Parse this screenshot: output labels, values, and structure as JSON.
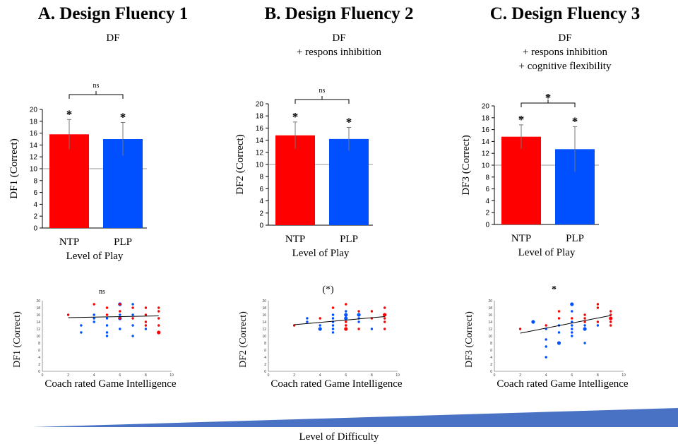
{
  "colors": {
    "ntp": "#ff0000",
    "plp": "#0050ff",
    "wedge": "#4a72c4",
    "ref_line": "#999999",
    "grid": "#555555"
  },
  "bottom": {
    "label": "Level of Difficulty"
  },
  "chart_data": [
    {
      "type": "bar",
      "panel": "A",
      "title": "A.  Design Fluency 1",
      "subtitle_lines": [
        "DF"
      ],
      "categories": [
        "NTP",
        "PLP"
      ],
      "values": [
        15.8,
        15.0
      ],
      "errors": [
        2.5,
        2.8
      ],
      "bar_labels": [
        "*",
        "*"
      ],
      "significance": "ns",
      "reference_line": 10,
      "xlabel": "Level of Play",
      "ylabel": "DF1 (Correct)",
      "ylim": [
        0,
        20
      ],
      "yticks": [
        0,
        2,
        4,
        6,
        8,
        10,
        12,
        14,
        16,
        18,
        20
      ]
    },
    {
      "type": "bar",
      "panel": "B",
      "title": "B. Design Fluency  2",
      "subtitle_lines": [
        "DF",
        "+ respons inhibition"
      ],
      "categories": [
        "NTP",
        "PLP"
      ],
      "values": [
        14.8,
        14.2
      ],
      "errors": [
        2.2,
        1.9
      ],
      "bar_labels": [
        "*",
        "*"
      ],
      "significance": "ns",
      "reference_line": 10,
      "xlabel": "Level of Play",
      "ylabel": "DF2 (Correct)",
      "ylim": [
        0,
        20
      ],
      "yticks": [
        0,
        2,
        4,
        6,
        8,
        10,
        12,
        14,
        16,
        18,
        20
      ]
    },
    {
      "type": "bar",
      "panel": "C",
      "title": "C. Design Fluency 3",
      "subtitle_lines": [
        "DF",
        "+ respons inhibition",
        "+ cognitive flexibility"
      ],
      "categories": [
        "NTP",
        "PLP"
      ],
      "values": [
        14.8,
        12.7
      ],
      "errors": [
        2.0,
        3.8
      ],
      "bar_labels": [
        "*",
        "*"
      ],
      "significance": "*",
      "reference_line": 10,
      "xlabel": "Level of Play",
      "ylabel": "DF3 (Correct)",
      "ylim": [
        0,
        20
      ],
      "yticks": [
        0,
        2,
        4,
        6,
        8,
        10,
        12,
        14,
        16,
        18,
        20
      ]
    },
    {
      "type": "scatter",
      "panel": "A",
      "significance": "ns",
      "xlabel": "Coach rated Game Intelligence",
      "ylabel": "DF1 (Correct)",
      "xlim": [
        0,
        10
      ],
      "ylim": [
        0,
        20
      ],
      "xticks": [
        0,
        2,
        4,
        6,
        8,
        10
      ],
      "yticks": [
        0,
        2,
        4,
        6,
        8,
        10,
        12,
        14,
        16,
        18,
        20
      ],
      "trend": [
        [
          2,
          15.2
        ],
        [
          9,
          15.7
        ]
      ],
      "points": [
        {
          "x": 2,
          "y": 16,
          "g": "ntp"
        },
        {
          "x": 3,
          "y": 13,
          "g": "plp"
        },
        {
          "x": 3,
          "y": 11,
          "g": "plp"
        },
        {
          "x": 4,
          "y": 19,
          "g": "ntp"
        },
        {
          "x": 4,
          "y": 16,
          "g": "plp"
        },
        {
          "x": 4,
          "y": 15,
          "g": "plp"
        },
        {
          "x": 4,
          "y": 14,
          "g": "plp"
        },
        {
          "x": 5,
          "y": 18,
          "g": "ntp"
        },
        {
          "x": 5,
          "y": 16,
          "g": "ntp"
        },
        {
          "x": 5,
          "y": 15,
          "g": "plp"
        },
        {
          "x": 5,
          "y": 13,
          "g": "plp"
        },
        {
          "x": 5,
          "y": 11,
          "g": "plp"
        },
        {
          "x": 5,
          "y": 10,
          "g": "plp"
        },
        {
          "x": 6,
          "y": 19,
          "g": "plp",
          "big": true
        },
        {
          "x": 6,
          "y": 19,
          "g": "ntp"
        },
        {
          "x": 6,
          "y": 17,
          "g": "ntp"
        },
        {
          "x": 6,
          "y": 16,
          "g": "plp"
        },
        {
          "x": 6,
          "y": 15,
          "g": "plp",
          "big": true
        },
        {
          "x": 6,
          "y": 15,
          "g": "ntp"
        },
        {
          "x": 6,
          "y": 12,
          "g": "plp"
        },
        {
          "x": 7,
          "y": 19,
          "g": "plp"
        },
        {
          "x": 7,
          "y": 18,
          "g": "ntp"
        },
        {
          "x": 7,
          "y": 16,
          "g": "plp"
        },
        {
          "x": 7,
          "y": 15,
          "g": "ntp"
        },
        {
          "x": 7,
          "y": 13,
          "g": "plp"
        },
        {
          "x": 7,
          "y": 10,
          "g": "plp"
        },
        {
          "x": 8,
          "y": 18,
          "g": "ntp"
        },
        {
          "x": 8,
          "y": 16,
          "g": "ntp"
        },
        {
          "x": 8,
          "y": 14,
          "g": "ntp"
        },
        {
          "x": 8,
          "y": 13,
          "g": "ntp"
        },
        {
          "x": 8,
          "y": 12,
          "g": "plp"
        },
        {
          "x": 9,
          "y": 18,
          "g": "ntp"
        },
        {
          "x": 9,
          "y": 17,
          "g": "ntp"
        },
        {
          "x": 9,
          "y": 15,
          "g": "ntp"
        },
        {
          "x": 9,
          "y": 13,
          "g": "ntp"
        },
        {
          "x": 9,
          "y": 11,
          "g": "ntp",
          "big": true
        }
      ]
    },
    {
      "type": "scatter",
      "panel": "B",
      "significance": "(*)",
      "xlabel": "Coach rated Game Intelligence",
      "ylabel": "DF2 (Correct)",
      "xlim": [
        0,
        10
      ],
      "ylim": [
        0,
        20
      ],
      "xticks": [
        0,
        2,
        4,
        6,
        8,
        10
      ],
      "yticks": [
        0,
        2,
        4,
        6,
        8,
        10,
        12,
        14,
        16,
        18,
        20
      ],
      "trend": [
        [
          2,
          13.2
        ],
        [
          9,
          15.5
        ]
      ],
      "points": [
        {
          "x": 2,
          "y": 13,
          "g": "ntp"
        },
        {
          "x": 3,
          "y": 15,
          "g": "plp"
        },
        {
          "x": 3,
          "y": 14,
          "g": "plp"
        },
        {
          "x": 4,
          "y": 15,
          "g": "ntp"
        },
        {
          "x": 4,
          "y": 13,
          "g": "plp"
        },
        {
          "x": 4,
          "y": 12,
          "g": "plp",
          "big": true
        },
        {
          "x": 5,
          "y": 18,
          "g": "ntp"
        },
        {
          "x": 5,
          "y": 16,
          "g": "plp"
        },
        {
          "x": 5,
          "y": 15,
          "g": "plp"
        },
        {
          "x": 5,
          "y": 14,
          "g": "plp"
        },
        {
          "x": 5,
          "y": 13,
          "g": "plp"
        },
        {
          "x": 5,
          "y": 12,
          "g": "plp"
        },
        {
          "x": 5,
          "y": 11,
          "g": "plp"
        },
        {
          "x": 6,
          "y": 19,
          "g": "ntp"
        },
        {
          "x": 6,
          "y": 17,
          "g": "plp"
        },
        {
          "x": 6,
          "y": 16,
          "g": "plp",
          "big": true
        },
        {
          "x": 6,
          "y": 15,
          "g": "plp",
          "big": true
        },
        {
          "x": 6,
          "y": 14,
          "g": "ntp"
        },
        {
          "x": 6,
          "y": 13,
          "g": "ntp"
        },
        {
          "x": 6,
          "y": 12,
          "g": "ntp",
          "big": true
        },
        {
          "x": 7,
          "y": 17,
          "g": "ntp"
        },
        {
          "x": 7,
          "y": 16,
          "g": "plp",
          "big": true
        },
        {
          "x": 7,
          "y": 15,
          "g": "plp"
        },
        {
          "x": 7,
          "y": 14,
          "g": "plp"
        },
        {
          "x": 7,
          "y": 12,
          "g": "ntp"
        },
        {
          "x": 8,
          "y": 17,
          "g": "ntp"
        },
        {
          "x": 8,
          "y": 15,
          "g": "ntp"
        },
        {
          "x": 8,
          "y": 12,
          "g": "plp"
        },
        {
          "x": 9,
          "y": 18,
          "g": "ntp"
        },
        {
          "x": 9,
          "y": 16,
          "g": "ntp",
          "big": true
        },
        {
          "x": 9,
          "y": 15,
          "g": "ntp"
        },
        {
          "x": 9,
          "y": 14,
          "g": "ntp"
        },
        {
          "x": 9,
          "y": 12,
          "g": "ntp"
        }
      ]
    },
    {
      "type": "scatter",
      "panel": "C",
      "significance": "*",
      "xlabel": "Coach rated Game Intelligence",
      "ylabel": "DF3 (Correct)",
      "xlim": [
        0,
        10
      ],
      "ylim": [
        0,
        20
      ],
      "xticks": [
        0,
        2,
        4,
        6,
        8,
        10
      ],
      "yticks": [
        0,
        2,
        4,
        6,
        8,
        10,
        12,
        14,
        16,
        18,
        20
      ],
      "trend": [
        [
          2,
          10.8
        ],
        [
          9,
          15.8
        ]
      ],
      "points": [
        {
          "x": 2,
          "y": 12,
          "g": "ntp"
        },
        {
          "x": 3,
          "y": 14,
          "g": "plp",
          "big": true
        },
        {
          "x": 4,
          "y": 13,
          "g": "ntp"
        },
        {
          "x": 4,
          "y": 12,
          "g": "plp"
        },
        {
          "x": 4,
          "y": 9,
          "g": "plp"
        },
        {
          "x": 4,
          "y": 7,
          "g": "plp"
        },
        {
          "x": 4,
          "y": 4,
          "g": "plp"
        },
        {
          "x": 5,
          "y": 17,
          "g": "ntp"
        },
        {
          "x": 5,
          "y": 15,
          "g": "ntp"
        },
        {
          "x": 5,
          "y": 13,
          "g": "plp"
        },
        {
          "x": 5,
          "y": 11,
          "g": "plp"
        },
        {
          "x": 5,
          "y": 8,
          "g": "plp",
          "big": true
        },
        {
          "x": 6,
          "y": 19,
          "g": "plp",
          "big": true
        },
        {
          "x": 6,
          "y": 17,
          "g": "plp"
        },
        {
          "x": 6,
          "y": 15,
          "g": "ntp"
        },
        {
          "x": 6,
          "y": 14,
          "g": "plp"
        },
        {
          "x": 6,
          "y": 13,
          "g": "plp"
        },
        {
          "x": 6,
          "y": 12,
          "g": "plp"
        },
        {
          "x": 6,
          "y": 11,
          "g": "plp"
        },
        {
          "x": 6,
          "y": 10,
          "g": "plp"
        },
        {
          "x": 7,
          "y": 16,
          "g": "ntp"
        },
        {
          "x": 7,
          "y": 15,
          "g": "ntp"
        },
        {
          "x": 7,
          "y": 14,
          "g": "ntp"
        },
        {
          "x": 7,
          "y": 13,
          "g": "plp"
        },
        {
          "x": 7,
          "y": 12,
          "g": "plp",
          "big": true
        },
        {
          "x": 7,
          "y": 8,
          "g": "plp"
        },
        {
          "x": 8,
          "y": 19,
          "g": "ntp"
        },
        {
          "x": 8,
          "y": 18,
          "g": "ntp"
        },
        {
          "x": 8,
          "y": 14,
          "g": "ntp"
        },
        {
          "x": 8,
          "y": 13,
          "g": "plp"
        },
        {
          "x": 9,
          "y": 17,
          "g": "ntp"
        },
        {
          "x": 9,
          "y": 16,
          "g": "ntp"
        },
        {
          "x": 9,
          "y": 15,
          "g": "ntp",
          "big": true
        },
        {
          "x": 9,
          "y": 14,
          "g": "ntp"
        },
        {
          "x": 9,
          "y": 13,
          "g": "ntp"
        }
      ]
    }
  ]
}
